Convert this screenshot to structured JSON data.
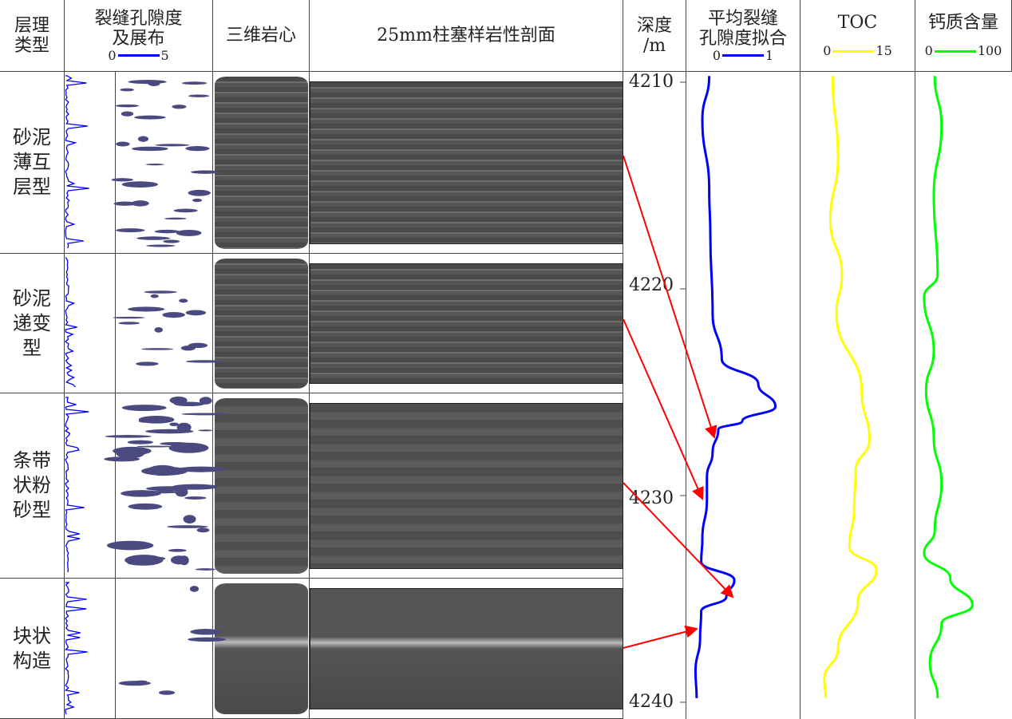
{
  "headers": {
    "type": "层理\n类型",
    "fracture": "裂缝孔隙度\n及展布",
    "fracture_min": "0",
    "fracture_max": "5",
    "core3d": "三维岩心",
    "plug": "25mm柱塞样岩性剖面",
    "depth": "深度\n/m",
    "fit": "平均裂缝\n孔隙度拟合",
    "fit_min": "0",
    "fit_max": "1",
    "toc": "TOC",
    "toc_min": "0",
    "toc_max": "15",
    "ca": "钙质含量",
    "ca_min": "0",
    "ca_max": "100"
  },
  "rows": [
    {
      "type": "砂泥\n薄互\n层型"
    },
    {
      "type": "砂泥\n递变\n型"
    },
    {
      "type": "条带\n状粉\n砂型"
    },
    {
      "type": "块状\n构造"
    }
  ],
  "depth_ticks": [
    "4210",
    "4220",
    "4230",
    "4240"
  ],
  "colors": {
    "fit": "#0000ff",
    "toc": "#ffff00",
    "ca": "#00ff00",
    "arrow": "#ff0000",
    "fracture_blob": "#4a4a80"
  },
  "curves": {
    "fit": {
      "range": [
        0,
        1
      ],
      "points": [
        [
          4209.7,
          0.2
        ],
        [
          4211.8,
          0.14
        ],
        [
          4215.2,
          0.2
        ],
        [
          4217.4,
          0.21
        ],
        [
          4221.2,
          0.23
        ],
        [
          4223.4,
          0.31
        ],
        [
          4224.6,
          0.63
        ],
        [
          4225.7,
          0.78
        ],
        [
          4226.4,
          0.49
        ],
        [
          4226.8,
          0.28
        ],
        [
          4227.9,
          0.23
        ],
        [
          4229.1,
          0.18
        ],
        [
          4230.2,
          0.18
        ],
        [
          4232.1,
          0.14
        ],
        [
          4233.2,
          0.13
        ],
        [
          4234.1,
          0.42
        ],
        [
          4234.9,
          0.35
        ],
        [
          4235.6,
          0.13
        ],
        [
          4236.9,
          0.12
        ],
        [
          4238.5,
          0.08
        ],
        [
          4239.8,
          0.09
        ]
      ]
    },
    "toc": {
      "range": [
        0,
        15
      ],
      "points": [
        [
          4209.7,
          4.2
        ],
        [
          4213.7,
          4.9
        ],
        [
          4216.7,
          3.9
        ],
        [
          4219.3,
          5.4
        ],
        [
          4221.2,
          4.7
        ],
        [
          4225.0,
          8.0
        ],
        [
          4227.3,
          9.0
        ],
        [
          4228.8,
          7.2
        ],
        [
          4230.6,
          7.0
        ],
        [
          4232.5,
          6.4
        ],
        [
          4233.6,
          9.9
        ],
        [
          4235.1,
          7.5
        ],
        [
          4237.4,
          4.9
        ],
        [
          4238.9,
          3.1
        ],
        [
          4239.8,
          3.3
        ]
      ]
    },
    "ca": {
      "range": [
        0,
        100
      ],
      "points": [
        [
          4209.7,
          20
        ],
        [
          4212.1,
          27
        ],
        [
          4215.5,
          19
        ],
        [
          4219.3,
          23
        ],
        [
          4220.4,
          9
        ],
        [
          4223.0,
          19
        ],
        [
          4224.9,
          11
        ],
        [
          4227.2,
          19
        ],
        [
          4229.4,
          27
        ],
        [
          4231.7,
          20
        ],
        [
          4232.8,
          9
        ],
        [
          4234.0,
          36
        ],
        [
          4235.3,
          59
        ],
        [
          4236.2,
          27
        ],
        [
          4238.1,
          15
        ],
        [
          4239.8,
          23
        ]
      ]
    }
  },
  "arrows": [
    [
      "row1",
      "fit@4226.9"
    ],
    [
      "row2",
      "fit@4230.0"
    ],
    [
      "row3",
      "fit@4234.3"
    ],
    [
      "row4",
      "fit@4235.5"
    ]
  ]
}
